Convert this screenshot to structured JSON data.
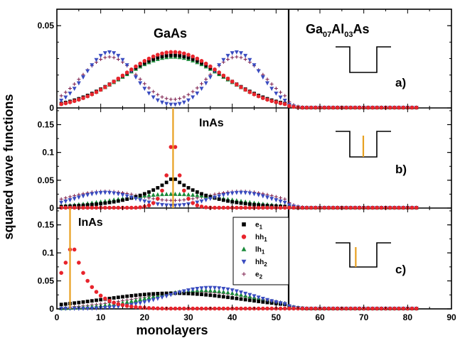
{
  "figure": {
    "xlabel": "monolayers",
    "ylabel": "squared wave functions",
    "x_ticks": [
      "0",
      "10",
      "20",
      "30",
      "40",
      "50",
      "60",
      "70",
      "80",
      "90"
    ]
  },
  "panels": [
    {
      "id": "a",
      "material_label": "GaAs",
      "barrier_label": {
        "base": "Ga",
        "sub1": "07",
        "mid": "Al",
        "sub2": "03",
        "tail": "As"
      },
      "panel_label": "a)",
      "y_ticks": [
        "0",
        "0.05"
      ]
    },
    {
      "id": "b",
      "material_label": "InAs",
      "panel_label": "b)",
      "y_ticks": [
        "0",
        "0.05",
        "0.1",
        "0.15"
      ]
    },
    {
      "id": "c",
      "material_label": "InAs",
      "panel_label": "c)",
      "y_ticks": [
        "0",
        "0.05",
        "0.1",
        "0.15"
      ]
    }
  ],
  "legend": [
    {
      "base": "e",
      "sub": "1",
      "marker": "square",
      "color": "#000000"
    },
    {
      "base": "hh",
      "sub": "1",
      "marker": "circle",
      "color": "#e8242c"
    },
    {
      "base": "lh",
      "sub": "1",
      "marker": "triangle-up",
      "color": "#1a8a3a"
    },
    {
      "base": "hh",
      "sub": "2",
      "marker": "triangle-down",
      "color": "#3a4cc0"
    },
    {
      "base": "e",
      "sub": "2",
      "marker": "plus",
      "color": "#7a1a4a"
    }
  ],
  "colors": {
    "insert_line": "#e8a020"
  },
  "chart_data": [
    {
      "type": "scatter",
      "panel": "a",
      "xlim": [
        0,
        90
      ],
      "ylim": [
        0,
        0.06
      ],
      "well_end": 52,
      "series": [
        {
          "name": "e1",
          "center": 26.5,
          "peak": 0.032,
          "sigma": 11.5
        },
        {
          "name": "hh1",
          "center": 26.5,
          "peak": 0.034,
          "sigma": 11
        },
        {
          "name": "lh1",
          "center": 26.5,
          "peak": 0.031,
          "sigma": 11.5
        },
        {
          "name": "hh2",
          "peaks": [
            12,
            41
          ],
          "peak": 0.034,
          "sigma": 5.5
        },
        {
          "name": "e2",
          "peaks": [
            12,
            41
          ],
          "peak": 0.031,
          "sigma": 6.5
        }
      ]
    },
    {
      "type": "scatter",
      "panel": "b",
      "xlim": [
        0,
        90
      ],
      "ylim": [
        0,
        0.18
      ],
      "insert_position": 26.5,
      "series": [
        {
          "name": "e1",
          "center": 26.5,
          "peak": 0.055,
          "decay": 8.5
        },
        {
          "name": "hh1",
          "center": 26.5,
          "peak": 0.15,
          "decay": 1.6
        },
        {
          "name": "lh1",
          "center": 26.5,
          "peak": 0.025,
          "sigma": 13
        },
        {
          "name": "hh2",
          "peaks": [
            11,
            42
          ],
          "peak": 0.028,
          "sigma": 7
        },
        {
          "name": "e2",
          "peaks": [
            11,
            42
          ],
          "peak": 0.03,
          "sigma": 9
        }
      ]
    },
    {
      "type": "scatter",
      "panel": "c",
      "xlim": [
        0,
        90
      ],
      "ylim": [
        0,
        0.18
      ],
      "insert_position": 3,
      "series": [
        {
          "name": "e1",
          "center": 26.5,
          "peak": 0.028,
          "sigma": 16
        },
        {
          "name": "hh1",
          "center": 3.5,
          "peak": 0.12,
          "decay": 4
        },
        {
          "name": "lh1",
          "center": 33,
          "peak": 0.033,
          "sigma": 12
        },
        {
          "name": "hh2",
          "center": 35,
          "peak": 0.038,
          "sigma": 10
        },
        {
          "name": "e2",
          "center": 32,
          "peak": 0.03,
          "sigma": 14
        }
      ]
    }
  ]
}
